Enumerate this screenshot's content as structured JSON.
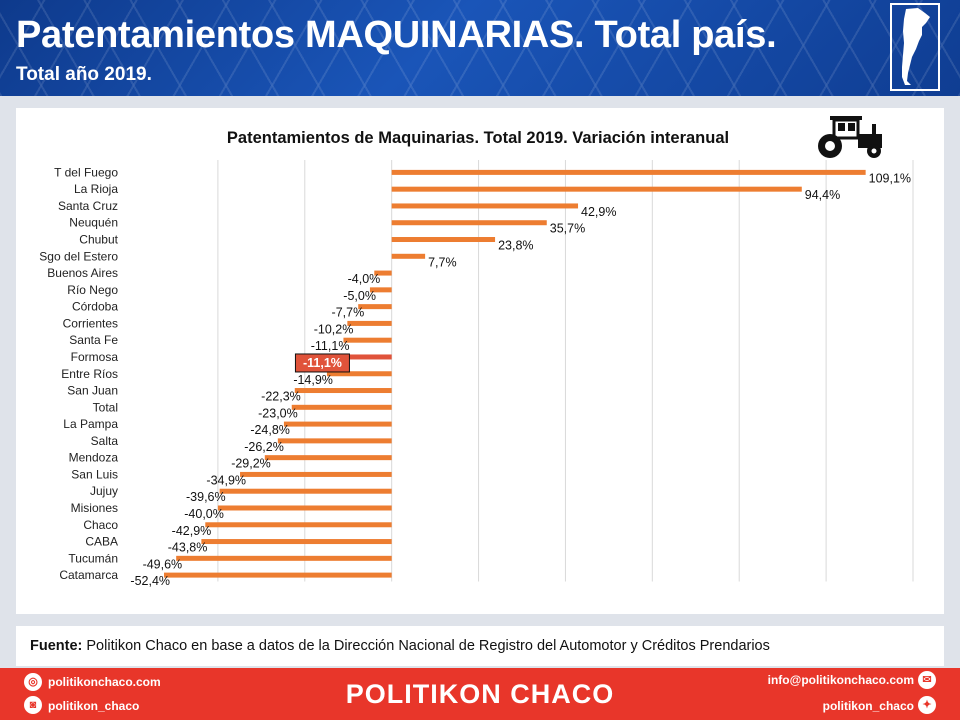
{
  "header": {
    "title": "Patentamientos MAQUINARIAS. Total país.",
    "subtitle": "Total año 2019."
  },
  "colors": {
    "bar": "#ed7d31",
    "highlight_bar": "#e0533a",
    "highlight_label_bg": "#e0533a",
    "header_bg": "#1a4fa8",
    "footer_bg": "#e8362a"
  },
  "icons": {
    "map": "argentina-map-icon",
    "tractor": "tractor-icon"
  },
  "chart_data": {
    "type": "bar",
    "orientation": "horizontal",
    "title": "Patentamientos de Maquinarias. Total 2019. Variación interanual",
    "categories": [
      "T del Fuego",
      "La Rioja",
      "Santa Cruz",
      "Neuquén",
      "Chubut",
      "Sgo del Estero",
      "Buenos Aires",
      "Río Nego",
      "Córdoba",
      "Corrientes",
      "Santa Fe",
      "Formosa",
      "Entre Ríos",
      "San Juan",
      "Total",
      "La Pampa",
      "Salta",
      "Mendoza",
      "San Luis",
      "Jujuy",
      "Misiones",
      "Chaco",
      "CABA",
      "Tucumán",
      "Catamarca"
    ],
    "values": [
      109.1,
      94.4,
      42.9,
      35.7,
      23.8,
      7.7,
      -4.0,
      -5.0,
      -7.7,
      -10.2,
      -11.1,
      -11.1,
      -14.9,
      -22.3,
      -23.0,
      -24.8,
      -26.2,
      -29.2,
      -34.9,
      -39.6,
      -40.0,
      -42.9,
      -43.8,
      -49.6,
      -52.4
    ],
    "labels": [
      "109,1%",
      "94,4%",
      "42,9%",
      "35,7%",
      "23,8%",
      "7,7%",
      "-4,0%",
      "-5,0%",
      "-7,7%",
      "-10,2%",
      "-11,1%",
      "-11,1%",
      "-14,9%",
      "-22,3%",
      "-23,0%",
      "-24,8%",
      "-26,2%",
      "-29,2%",
      "-34,9%",
      "-39,6%",
      "-40,0%",
      "-42,9%",
      "-43,8%",
      "-49,6%",
      "-52,4%"
    ],
    "highlight": "Formosa",
    "xlim": [
      -60,
      120
    ],
    "grid": true,
    "legend": "none"
  },
  "source": {
    "label": "Fuente:",
    "text": " Politikon Chaco en base a datos de la Dirección Nacional de Registro del Automotor y Créditos Prendarios"
  },
  "footer": {
    "website": "politikonchaco.com",
    "instagram": "politikon_chaco",
    "brand": "POLITIKON CHACO",
    "email": "info@politikonchaco.com",
    "twitter": "politikon_chaco"
  }
}
